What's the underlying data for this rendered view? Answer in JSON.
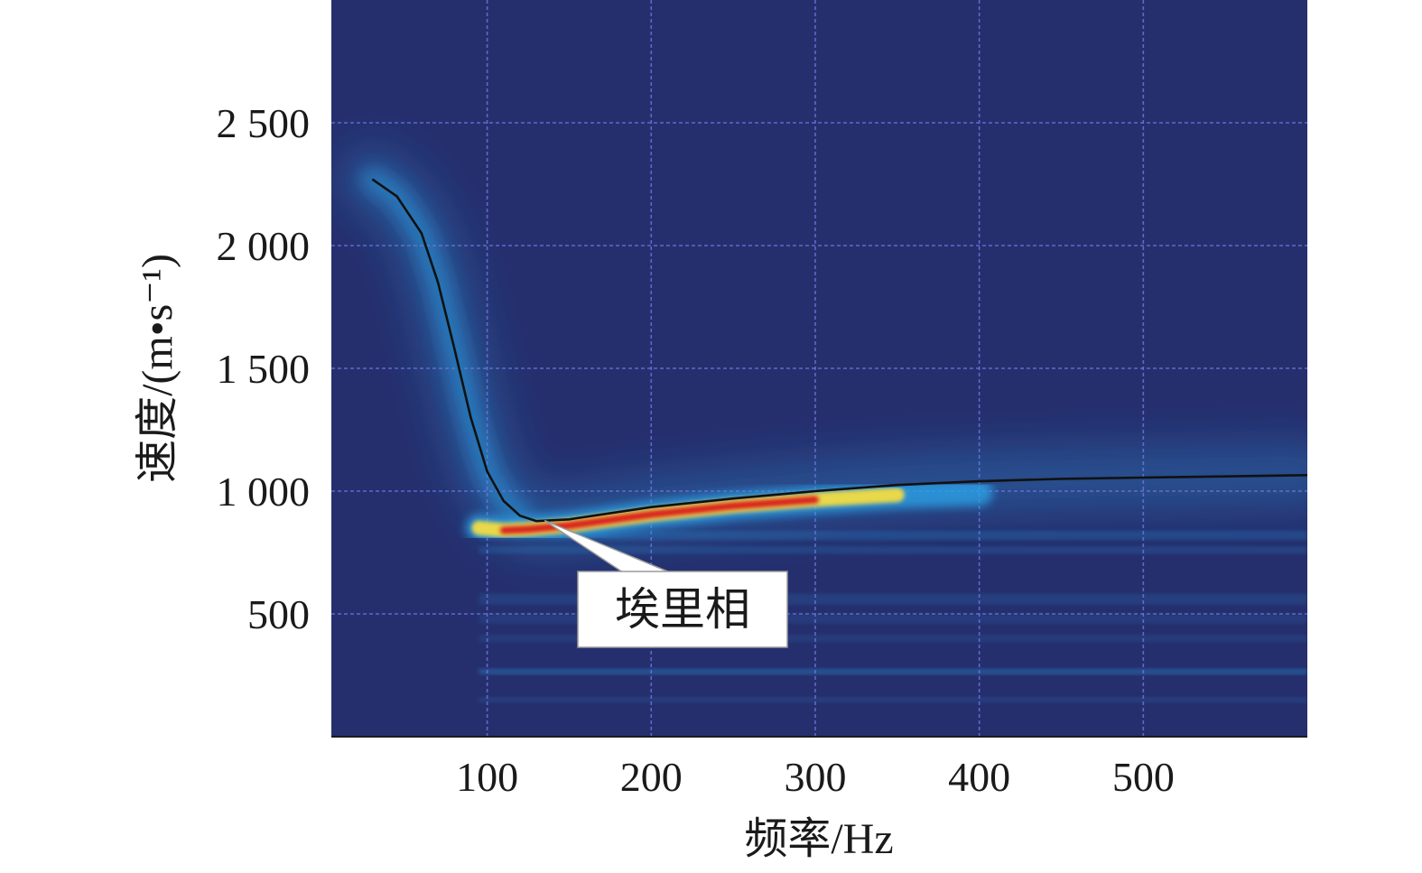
{
  "chart_data": {
    "type": "heatmap",
    "xlabel": "频率/Hz",
    "ylabel": "速度/(m•s⁻¹)",
    "xlim": [
      5,
      600
    ],
    "ylim": [
      0,
      3000
    ],
    "x_ticks": [
      100,
      200,
      300,
      400,
      500
    ],
    "x_tick_labels": [
      "100",
      "200",
      "300",
      "400",
      "500"
    ],
    "y_ticks": [
      500,
      1000,
      1500,
      2000,
      2500
    ],
    "y_tick_labels": [
      "500",
      "1 000",
      "1 500",
      "2 000",
      "2 500"
    ],
    "grid": true,
    "colors": {
      "background": "#252f6e",
      "grid": "#6f77df",
      "curve": "#111111",
      "ridge_low": "#2aa0e6",
      "ridge_mid": "#e9d84a",
      "ridge_high": "#d81e1e"
    },
    "dispersion_curve": {
      "x": [
        30,
        45,
        60,
        70,
        80,
        90,
        100,
        110,
        120,
        130,
        150,
        200,
        250,
        300,
        350,
        400,
        450,
        500,
        550,
        600
      ],
      "y": [
        2270,
        2200,
        2050,
        1850,
        1580,
        1300,
        1080,
        960,
        900,
        878,
        885,
        935,
        970,
        1000,
        1025,
        1040,
        1050,
        1055,
        1060,
        1065
      ]
    },
    "ridge": {
      "x": [
        95,
        110,
        125,
        150,
        200,
        250,
        300,
        350,
        400
      ],
      "y": [
        850,
        840,
        845,
        860,
        905,
        940,
        965,
        985,
        995
      ]
    },
    "annotation": {
      "text": "埃里相",
      "x": 135,
      "y": 880
    }
  }
}
